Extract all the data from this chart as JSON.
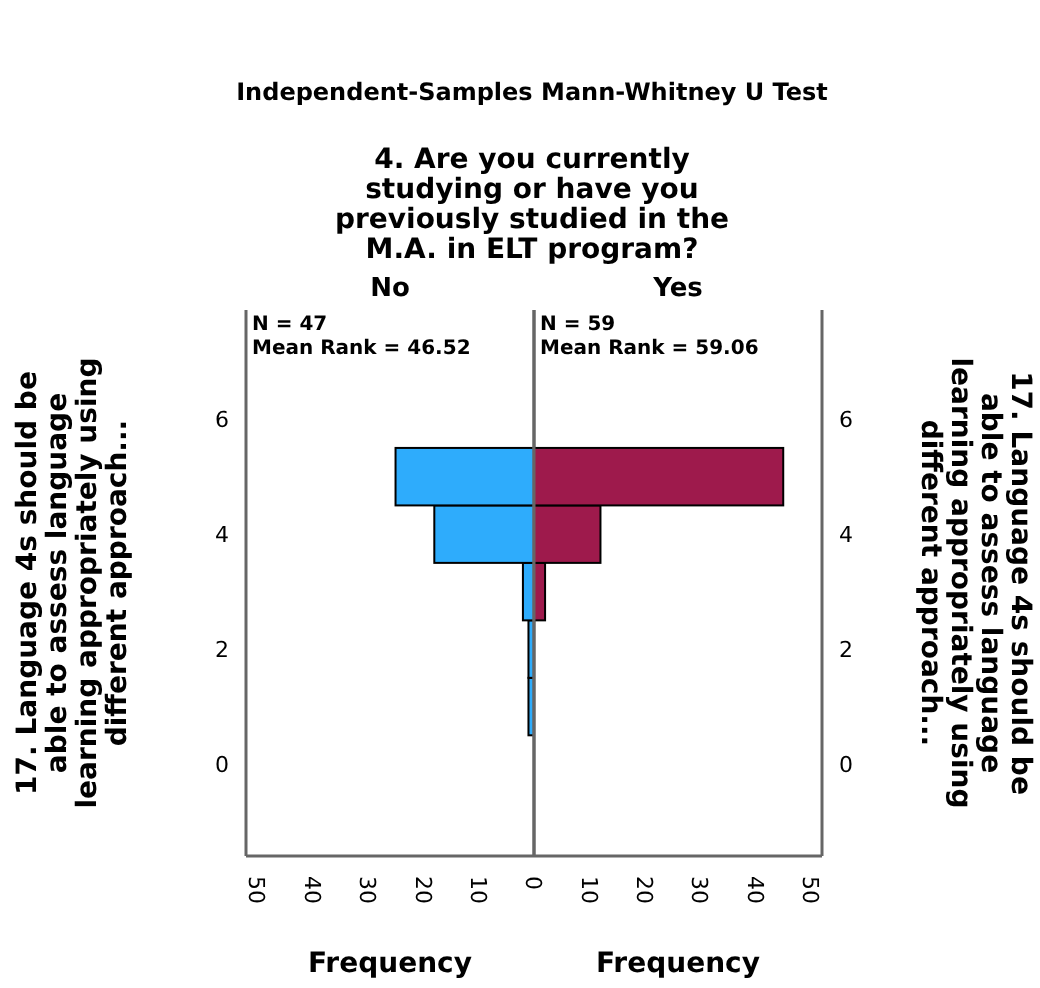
{
  "chart_data": [
    {
      "type": "histogram",
      "orientation": "horizontal",
      "title": "Independent-Samples Mann-Whitney U Test",
      "subtitle": "4. Are you currently studying or have you previously studied in the M.A. in ELT program?",
      "xlabel": "Frequency",
      "ylabel": "17. Language 4s should be able to assess language learning appropriately using different approach...",
      "xlim": [
        52,
        0
      ],
      "xticks": [
        50,
        40,
        30,
        20,
        10,
        0
      ],
      "ylim": [
        -1.6,
        7.9
      ],
      "yticks": [
        0,
        2,
        4,
        6
      ],
      "bins": [
        0.5,
        1.5,
        2.5,
        3.5,
        4.5,
        5.5
      ],
      "values": [
        1,
        1,
        2,
        18,
        25
      ],
      "color": "#2eacfc",
      "annotations": [
        "No",
        "N = 47",
        "Mean Rank = 46.52"
      ]
    },
    {
      "type": "histogram",
      "orientation": "horizontal",
      "xlabel": "Frequency",
      "ylabel": "17. Language 4s should be able to assess language learning appropriately using different approach...",
      "xlim": [
        0,
        52
      ],
      "xticks": [
        10,
        20,
        30,
        40,
        50
      ],
      "ylim": [
        -1.6,
        7.9
      ],
      "yticks": [
        0,
        2,
        4,
        6
      ],
      "bins": [
        0.5,
        1.5,
        2.5,
        3.5,
        4.5,
        5.5
      ],
      "values": [
        0,
        0,
        2,
        12,
        45
      ],
      "color": "#9e1a4c",
      "annotations": [
        "Yes",
        "N = 59",
        "Mean Rank = 59.06"
      ]
    }
  ]
}
